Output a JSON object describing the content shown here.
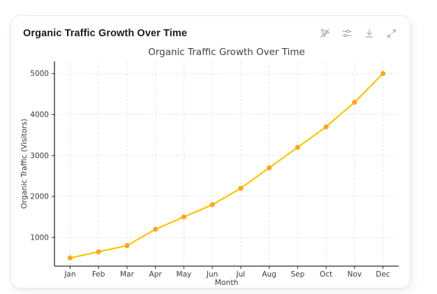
{
  "page": {
    "background": "#ffffff"
  },
  "card": {
    "title": "Organic Traffic Growth Over Time",
    "toolbar": [
      {
        "label": "disable interactivity",
        "icon": "pointer-off-icon"
      },
      {
        "label": "chart settings",
        "icon": "sliders-icon"
      },
      {
        "label": "download chart",
        "icon": "download-icon"
      },
      {
        "label": "expand chart",
        "icon": "expand-icon"
      }
    ],
    "border_color": "#ebebeb",
    "icon_color": "#a6a6a6"
  },
  "chart_data": {
    "type": "line",
    "title": "Organic Traffic Growth Over Time",
    "xlabel": "Month",
    "ylabel": "Organic Traffic (Visitors)",
    "categories": [
      "Jan",
      "Feb",
      "Mar",
      "Apr",
      "May",
      "Jun",
      "Jul",
      "Aug",
      "Sep",
      "Oct",
      "Nov",
      "Dec"
    ],
    "values": [
      500,
      650,
      800,
      1200,
      1500,
      1800,
      2200,
      2700,
      3200,
      3700,
      4300,
      5000
    ],
    "yticks": [
      1000,
      2000,
      3000,
      4000,
      5000
    ],
    "ylim": [
      300,
      5300
    ],
    "grid": true,
    "grid_style": "dashed",
    "legend": "none",
    "line_color": "#FFC400",
    "marker_color": "#FFA424",
    "spine_color": "#2b2b2b",
    "grid_color": "#e3e3e3",
    "text_color": "#3a3a3a",
    "title_color": "#404040"
  }
}
